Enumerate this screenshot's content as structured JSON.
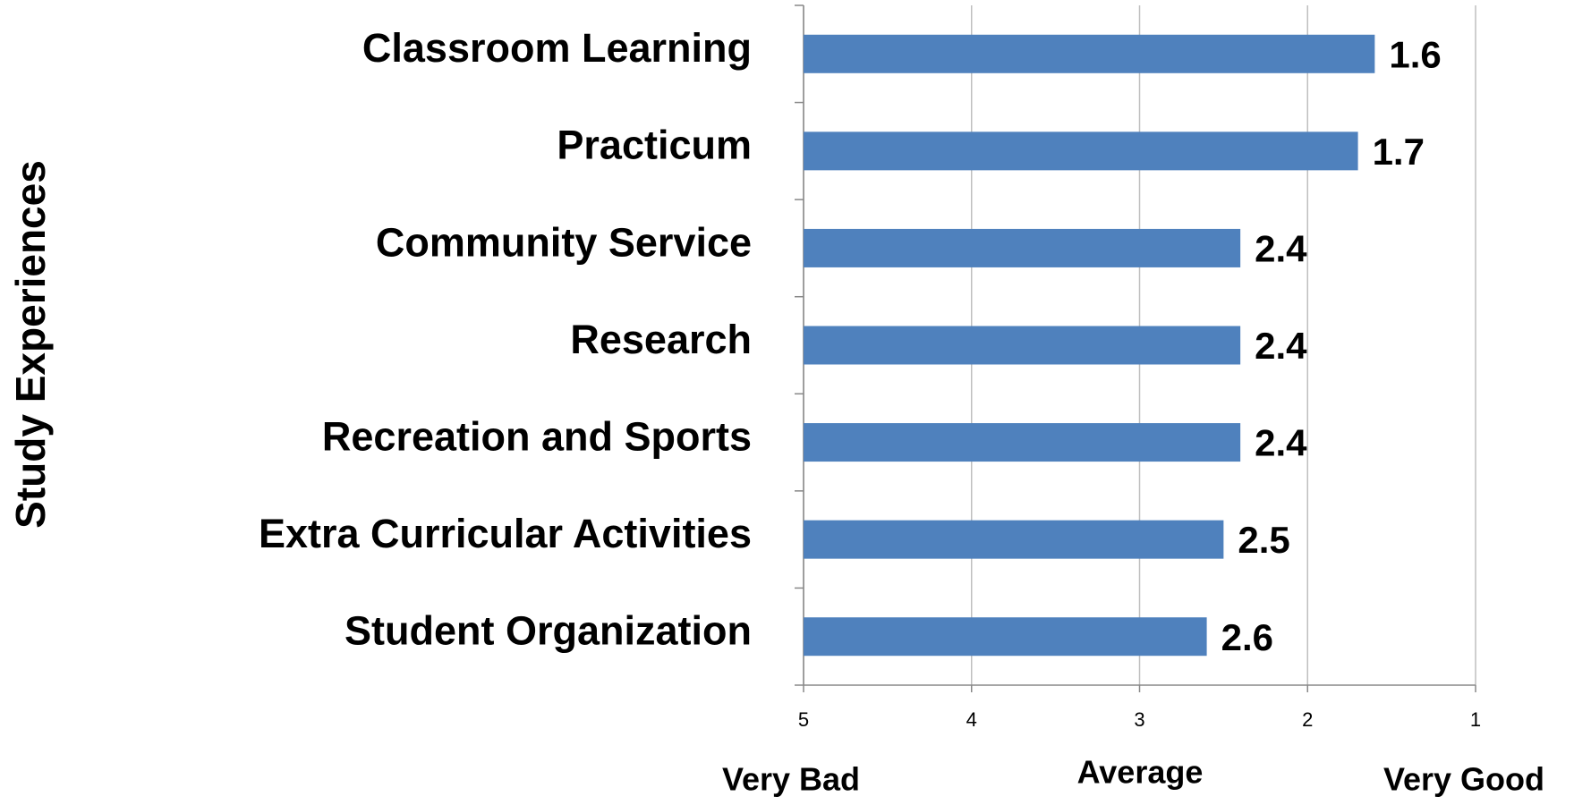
{
  "chart_data": {
    "type": "bar",
    "orientation": "horizontal",
    "y_label": "Study Experiences",
    "categories": [
      "Classroom Learning",
      "Practicum",
      "Community Service",
      "Research",
      "Recreation and Sports",
      "Extra Curricular Activities",
      "Student Organization"
    ],
    "values": [
      1.6,
      1.7,
      2.4,
      2.4,
      2.4,
      2.5,
      2.6
    ],
    "color": "#4f81bd",
    "xlim": [
      5,
      1
    ],
    "xticks": [
      5,
      4,
      3,
      2,
      1
    ],
    "grid": true,
    "annotations": [
      "Very Bad",
      "Average",
      "Very Good"
    ]
  }
}
